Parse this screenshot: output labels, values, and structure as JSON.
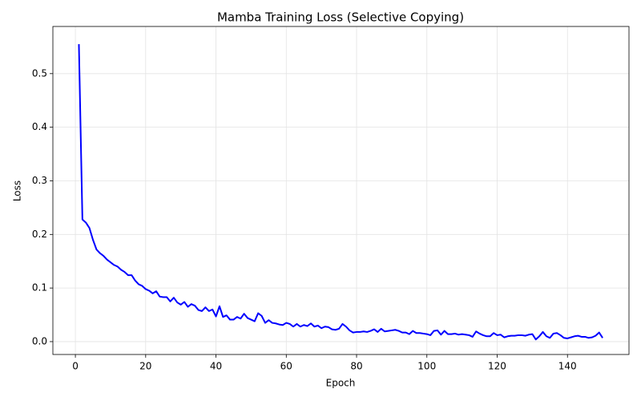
{
  "chart_data": {
    "type": "line",
    "title": "Mamba Training Loss (Selective Copying)",
    "x_label": "Epoch",
    "y_label": "Loss",
    "x": [
      1,
      2,
      3,
      4,
      5,
      6,
      7,
      8,
      9,
      10,
      11,
      12,
      13,
      14,
      15,
      16,
      17,
      18,
      19,
      20,
      21,
      22,
      23,
      24,
      25,
      26,
      27,
      28,
      29,
      30,
      31,
      32,
      33,
      34,
      35,
      36,
      37,
      38,
      39,
      40,
      41,
      42,
      43,
      44,
      45,
      46,
      47,
      48,
      49,
      50,
      51,
      52,
      53,
      54,
      55,
      56,
      57,
      58,
      59,
      60,
      61,
      62,
      63,
      64,
      65,
      66,
      67,
      68,
      69,
      70,
      71,
      72,
      73,
      74,
      75,
      76,
      77,
      78,
      79,
      80,
      81,
      82,
      83,
      84,
      85,
      86,
      87,
      88,
      89,
      90,
      91,
      92,
      93,
      94,
      95,
      96,
      97,
      98,
      99,
      100,
      101,
      102,
      103,
      104,
      105,
      106,
      107,
      108,
      109,
      110,
      111,
      112,
      113,
      114,
      115,
      116,
      117,
      118,
      119,
      120,
      121,
      122,
      123,
      124,
      125,
      126,
      127,
      128,
      129,
      130,
      131,
      132,
      133,
      134,
      135,
      136,
      137,
      138,
      139,
      140,
      141,
      142,
      143,
      144,
      145,
      146,
      147,
      148,
      149,
      150
    ],
    "series": [
      {
        "name": "Loss",
        "color": "#0000ff",
        "values": [
          0.555,
          0.228,
          0.222,
          0.212,
          0.19,
          0.172,
          0.165,
          0.16,
          0.153,
          0.148,
          0.143,
          0.14,
          0.134,
          0.13,
          0.124,
          0.124,
          0.114,
          0.107,
          0.104,
          0.098,
          0.095,
          0.09,
          0.094,
          0.084,
          0.083,
          0.083,
          0.075,
          0.082,
          0.073,
          0.069,
          0.074,
          0.065,
          0.07,
          0.067,
          0.059,
          0.057,
          0.064,
          0.057,
          0.06,
          0.047,
          0.066,
          0.046,
          0.049,
          0.041,
          0.041,
          0.046,
          0.043,
          0.052,
          0.044,
          0.041,
          0.038,
          0.053,
          0.048,
          0.035,
          0.04,
          0.035,
          0.034,
          0.032,
          0.031,
          0.035,
          0.033,
          0.028,
          0.033,
          0.028,
          0.031,
          0.029,
          0.034,
          0.028,
          0.03,
          0.025,
          0.028,
          0.027,
          0.023,
          0.022,
          0.024,
          0.033,
          0.028,
          0.021,
          0.017,
          0.018,
          0.018,
          0.019,
          0.018,
          0.02,
          0.023,
          0.018,
          0.024,
          0.019,
          0.02,
          0.021,
          0.022,
          0.02,
          0.017,
          0.017,
          0.014,
          0.02,
          0.016,
          0.016,
          0.015,
          0.014,
          0.012,
          0.02,
          0.021,
          0.013,
          0.02,
          0.014,
          0.014,
          0.015,
          0.013,
          0.014,
          0.013,
          0.012,
          0.009,
          0.019,
          0.015,
          0.012,
          0.01,
          0.01,
          0.016,
          0.012,
          0.013,
          0.008,
          0.01,
          0.011,
          0.011,
          0.012,
          0.012,
          0.011,
          0.013,
          0.014,
          0.004,
          0.01,
          0.018,
          0.01,
          0.007,
          0.015,
          0.016,
          0.012,
          0.007,
          0.006,
          0.008,
          0.01,
          0.011,
          0.009,
          0.009,
          0.007,
          0.008,
          0.011,
          0.017,
          0.007
        ]
      }
    ],
    "xlim": [
      -6.4,
      157.5
    ],
    "ylim": [
      -0.024,
      0.588
    ],
    "xticks": [
      0,
      20,
      40,
      60,
      80,
      100,
      120,
      140
    ],
    "yticks": [
      {
        "value": 0,
        "label": "0.0"
      },
      0.1,
      0.2,
      0.3,
      0.4,
      0.5
    ],
    "grid": true
  }
}
